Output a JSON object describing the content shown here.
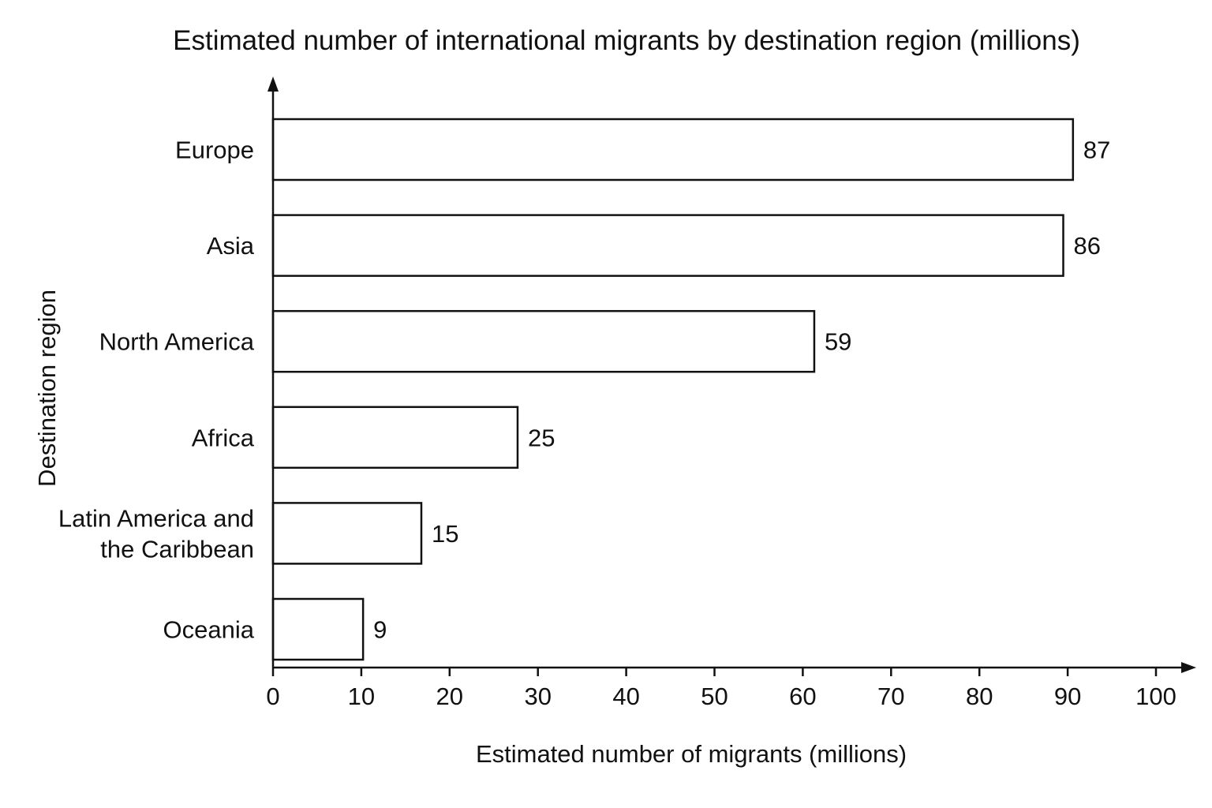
{
  "chart_data": {
    "type": "bar",
    "orientation": "horizontal",
    "title": "Estimated number of international migrants by destination region (millions)",
    "xlabel": "Estimated number of migrants (millions)",
    "ylabel": "Destination region",
    "categories": [
      [
        "Europe"
      ],
      [
        "Asia"
      ],
      [
        "North America"
      ],
      [
        "Africa"
      ],
      [
        "Latin America and",
        "the Caribbean"
      ],
      [
        "Oceania"
      ]
    ],
    "values": [
      87,
      86,
      59,
      25,
      15,
      9
    ],
    "bar_extent": [
      90.6,
      89.5,
      61.3,
      27.7,
      16.8,
      10.2
    ],
    "xlim": [
      0,
      100
    ],
    "xticks": [
      0,
      10,
      20,
      30,
      40,
      50,
      60,
      70,
      80,
      90,
      100
    ],
    "grid": false,
    "legend": "none",
    "colors": {
      "bar_fill": "#ffffff",
      "bar_stroke": "#111111",
      "text": "#111111"
    }
  }
}
